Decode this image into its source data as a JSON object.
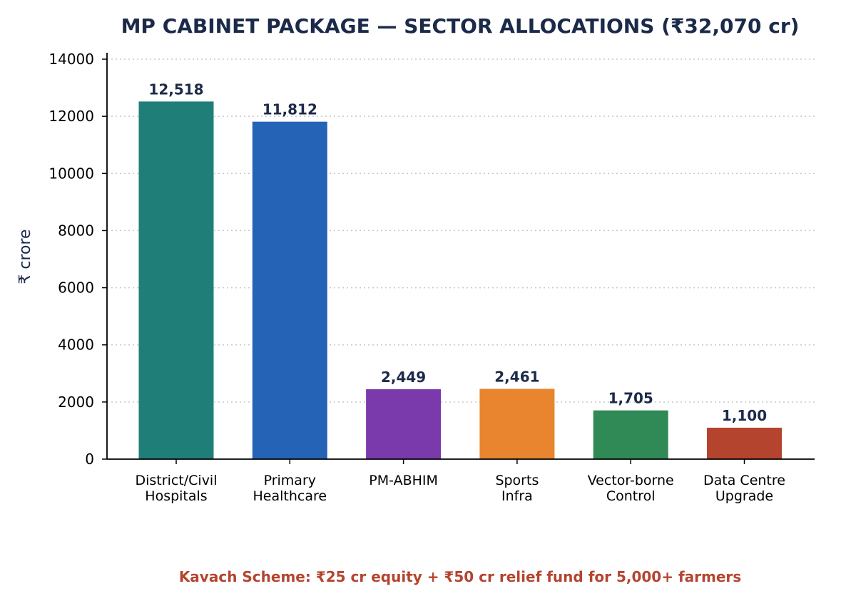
{
  "colors": {
    "title": "#1c2a4a",
    "footnote": "#b5442f",
    "grid": "#c8c8c8",
    "axis": "#000000"
  },
  "chart_data": {
    "type": "bar",
    "title": "MP CABINET PACKAGE — SECTOR ALLOCATIONS (₹32,070 cr)",
    "xlabel": "",
    "ylabel": "₹ crore",
    "ylim": [
      0,
      14000
    ],
    "yticks": [
      0,
      2000,
      4000,
      6000,
      8000,
      10000,
      12000,
      14000
    ],
    "grid": "horizontal dotted",
    "categories": [
      [
        "District/Civil",
        "Hospitals"
      ],
      [
        "Primary",
        "Healthcare"
      ],
      [
        "PM-ABHIM"
      ],
      [
        "Sports",
        "Infra"
      ],
      [
        "Vector-borne",
        "Control"
      ],
      [
        "Data Centre",
        "Upgrade"
      ]
    ],
    "values": [
      12518,
      11812,
      2449,
      2461,
      1705,
      1100
    ],
    "value_labels": [
      "12,518",
      "11,812",
      "2,449",
      "2,461",
      "1,705",
      "1,100"
    ],
    "bar_colors": [
      "#1f7f78",
      "#2563b6",
      "#7b3aac",
      "#e8852e",
      "#2f8a55",
      "#b5442f"
    ],
    "annotation": "Kavach Scheme: ₹25 cr equity + ₹50 cr relief fund for 5,000+ farmers"
  }
}
